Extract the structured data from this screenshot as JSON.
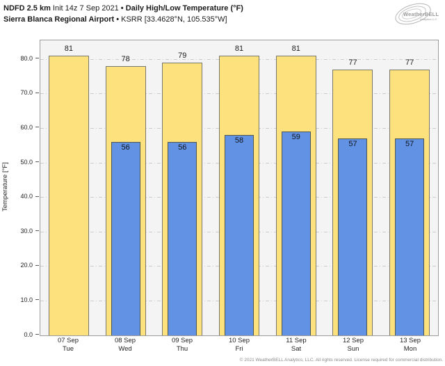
{
  "header": {
    "model": "NDFD 2.5 km",
    "init": "Init 14z 7 Sep 2021",
    "sep": "•",
    "product": "Daily High/Low Temperature (°F)",
    "station": "Sierra Blanca Regional Airport",
    "station_id": "KSRR [33.4628°N, 105.535°W]"
  },
  "logo": {
    "brand": "WeatherBELL",
    "sub": "Analytics LLC"
  },
  "chart_data": {
    "type": "bar",
    "title": "Daily High/Low Temperature (°F)",
    "ylabel": "Temperature [°F]",
    "ylim": [
      0,
      85.5
    ],
    "yticks": [
      0,
      10,
      20,
      30,
      40,
      50,
      60,
      70,
      80
    ],
    "ytick_labels": [
      "0.0",
      "10.0",
      "20.0",
      "30.0",
      "40.0",
      "50.0",
      "60.0",
      "70.0",
      "80.0"
    ],
    "grid": "horizontal dash-dot",
    "legend_position": "none",
    "bar_value_labels": true,
    "categories": [
      {
        "date": "07 Sep",
        "day": "Tue"
      },
      {
        "date": "08 Sep",
        "day": "Wed"
      },
      {
        "date": "09 Sep",
        "day": "Thu"
      },
      {
        "date": "10 Sep",
        "day": "Fri"
      },
      {
        "date": "11 Sep",
        "day": "Sat"
      },
      {
        "date": "12 Sep",
        "day": "Sun"
      },
      {
        "date": "13 Sep",
        "day": "Mon"
      }
    ],
    "series": [
      {
        "name": "High",
        "values": [
          81,
          78,
          79,
          81,
          81,
          77,
          77
        ]
      },
      {
        "name": "Low",
        "values": [
          null,
          56,
          56,
          58,
          59,
          57,
          57
        ]
      }
    ]
  },
  "colors": {
    "high": "#FDE17D",
    "low": "#6292E4",
    "bar_border": "#77766a",
    "low_border": "#4f5650",
    "plot_bg": "#f4f4f4",
    "grid": "#cccccc",
    "axis": "#9b9b9b"
  },
  "footer": {
    "copyright": "© 2021 WeatherBELL Analytics, LLC. All rights reserved. License required for commercial distribution."
  }
}
